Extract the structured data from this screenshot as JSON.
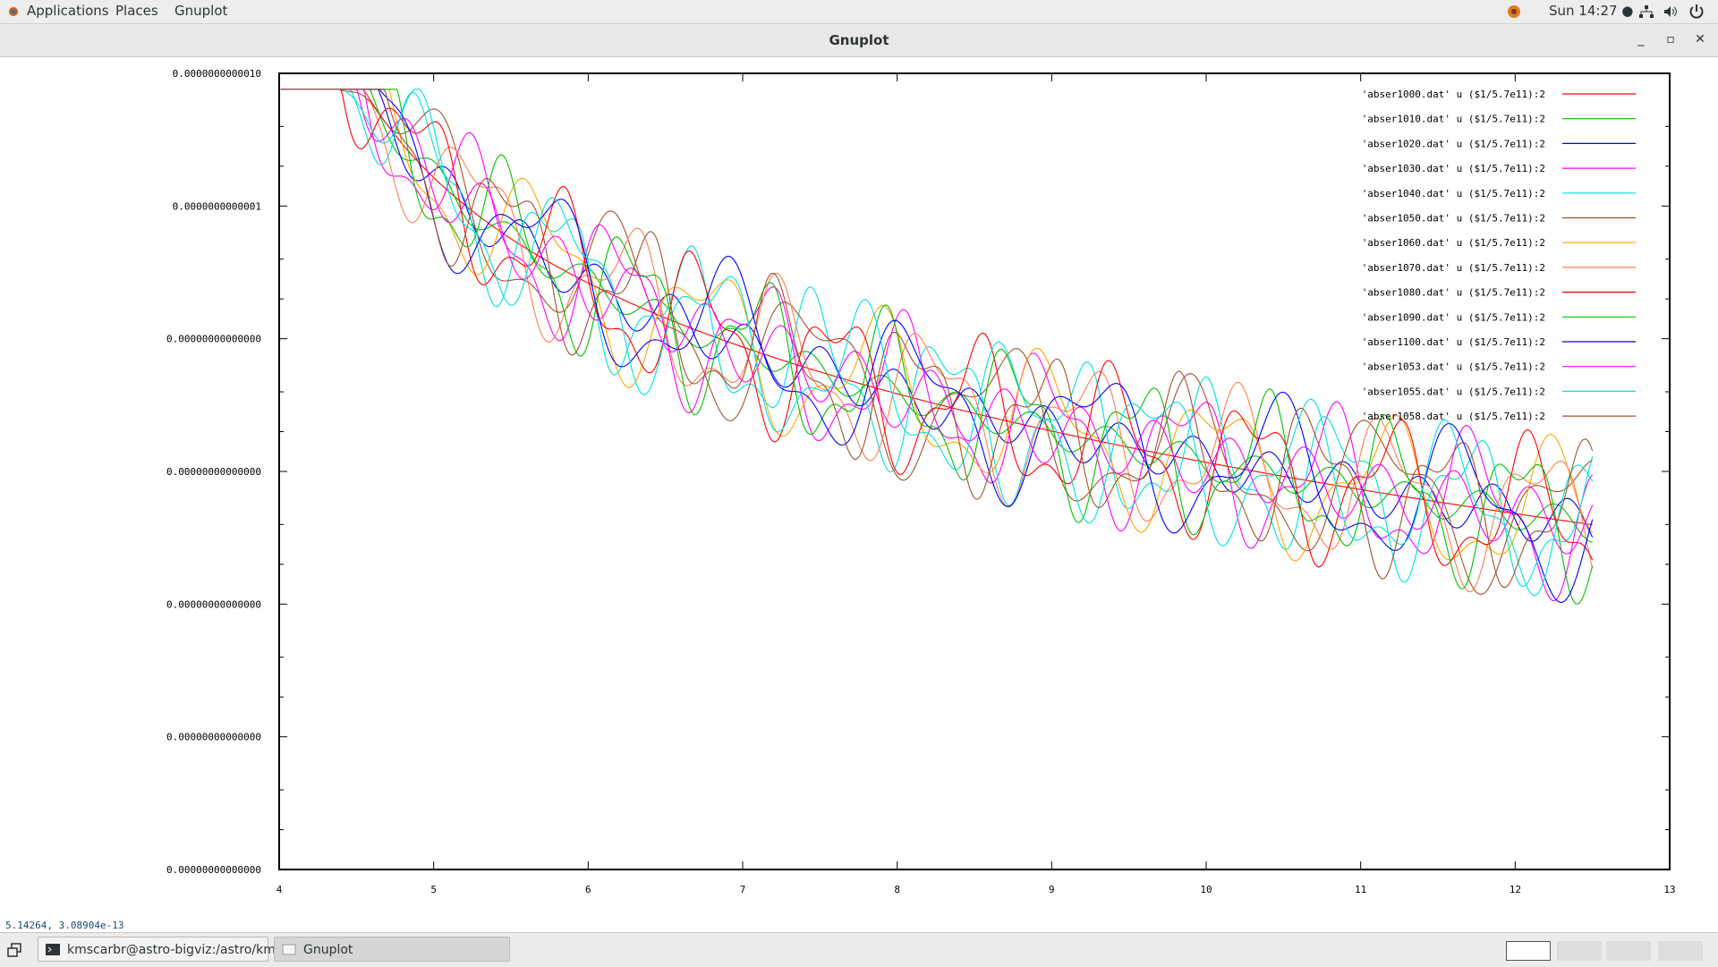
{
  "topbar": {
    "menus": [
      "Applications",
      "Places",
      "Gnuplot"
    ],
    "clock": "Sun 14:27 ●"
  },
  "window": {
    "title": "Gnuplot",
    "status": "5.14264,  3.08904e-13"
  },
  "taskbar": {
    "tasks": [
      "kmscarbr@astro-bigviz:/astro/kmsc...",
      "Gnuplot"
    ]
  },
  "chart_data": {
    "type": "line",
    "xlim": [
      4,
      13
    ],
    "x_ticks": [
      "4",
      "5",
      "6",
      "7",
      "8",
      "9",
      "10",
      "11",
      "12",
      "13"
    ],
    "y_ticks": [
      "0.00000000000000",
      "0.00000000000000",
      "0.00000000000000",
      "0.00000000000000",
      "0.00000000000000",
      "0.0000000000001",
      "0.0000000000010"
    ],
    "grid": false,
    "legend_position": "top-right",
    "series": [
      {
        "name": "'abser1000.dat' u ($1/5.7e11):2",
        "color": "#ff0000",
        "noise": 0.0,
        "seed": 1
      },
      {
        "name": "'abser1010.dat' u ($1/5.7e11):2",
        "color": "#00c000",
        "noise": 0.02,
        "seed": 2
      },
      {
        "name": "'abser1020.dat' u ($1/5.7e11):2",
        "color": "#0000ff",
        "noise": 0.03,
        "seed": 3
      },
      {
        "name": "'abser1030.dat' u ($1/5.7e11):2",
        "color": "#ff00ff",
        "noise": 0.9,
        "seed": 4
      },
      {
        "name": "'abser1040.dat' u ($1/5.7e11):2",
        "color": "#00e0e0",
        "noise": 0.9,
        "seed": 5
      },
      {
        "name": "'abser1050.dat' u ($1/5.7e11):2",
        "color": "#a0522d",
        "noise": 0.9,
        "seed": 6
      },
      {
        "name": "'abser1060.dat' u ($1/5.7e11):2",
        "color": "#ffa500",
        "noise": 0.9,
        "seed": 7
      },
      {
        "name": "'abser1070.dat' u ($1/5.7e11):2",
        "color": "#ff7f50",
        "noise": 0.9,
        "seed": 8
      },
      {
        "name": "'abser1080.dat' u ($1/5.7e11):2",
        "color": "#ff0000",
        "noise": 0.9,
        "seed": 9
      },
      {
        "name": "'abser1090.dat' u ($1/5.7e11):2",
        "color": "#00c000",
        "noise": 0.9,
        "seed": 10
      },
      {
        "name": "'abser1100.dat' u ($1/5.7e11):2",
        "color": "#0000ff",
        "noise": 0.9,
        "seed": 11
      },
      {
        "name": "'abser1053.dat' u ($1/5.7e11):2",
        "color": "#ff00ff",
        "noise": 0.04,
        "seed": 12
      },
      {
        "name": "'abser1055.dat' u ($1/5.7e11):2",
        "color": "#00e0e0",
        "noise": 0.9,
        "seed": 13
      },
      {
        "name": "'abser1058.dat' u ($1/5.7e11):2",
        "color": "#a0522d",
        "noise": 0.9,
        "seed": 14
      }
    ]
  }
}
